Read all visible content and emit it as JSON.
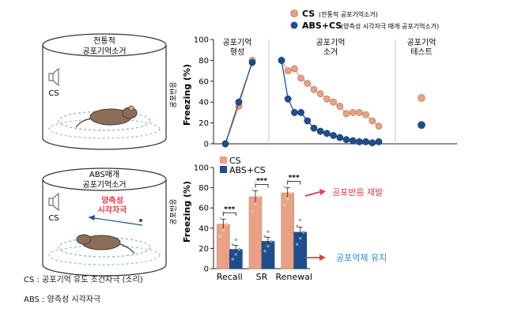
{
  "legend": {
    "items": [
      {
        "label": "CS",
        "sub": "(전통적 공포기억소거)",
        "color": "#e8a184"
      },
      {
        "label": "ABS+CS",
        "sub": "(양측성 시각자극 매개 공포기억소거)",
        "color": "#1f4e8c"
      }
    ]
  },
  "scene_top": {
    "title_line1": "전통적",
    "title_line2": "공포기억소거",
    "cs_label": "CS"
  },
  "scene_bottom": {
    "title_line1": "ABS매개",
    "title_line2": "공포기억소거",
    "stim_line1": "양측성",
    "stim_line2": "시각자극",
    "cs_label": "CS"
  },
  "footnotes": {
    "cs": "CS : 공포기억 유도 조건자극 (소리)",
    "abs": "ABS : 양측성 시각자극"
  },
  "annotations": {
    "fear_return": "공포반응 재발",
    "fear_maintain": "공포억제 유지",
    "colors": {
      "red": "#e63946",
      "blue": "#2e86c1"
    }
  },
  "chart_data": [
    {
      "type": "line",
      "ylabel": "Freezing (%)",
      "ylabel_ko": "공포반응",
      "ylim": [
        0,
        100
      ],
      "yticks": [
        0,
        20,
        40,
        60,
        80,
        100
      ],
      "phases": [
        {
          "line1": "공포기억",
          "line2": "형성"
        },
        {
          "line1": "공포기억",
          "line2": "소거"
        },
        {
          "line1": "공포기억",
          "line2": "테스트"
        }
      ],
      "series": [
        {
          "name": "CS",
          "color": "#e8a184",
          "acquisition": [
            0,
            36,
            80
          ],
          "extinction": [
            80,
            70,
            72,
            63,
            58,
            52,
            48,
            43,
            40,
            36,
            29,
            30,
            30,
            28,
            22,
            17
          ],
          "test": [
            44
          ]
        },
        {
          "name": "ABS+CS",
          "color": "#1f4e8c",
          "acquisition": [
            0,
            40,
            78
          ],
          "extinction": [
            80,
            43,
            30,
            30,
            22,
            15,
            12,
            10,
            8,
            6,
            4,
            3,
            2,
            2,
            1,
            2
          ],
          "test": [
            18
          ]
        }
      ]
    },
    {
      "type": "bar",
      "ylabel": "Freezing (%)",
      "ylabel_ko": "공포반응",
      "ylim": [
        0,
        100
      ],
      "yticks": [
        0,
        20,
        40,
        60,
        80,
        100
      ],
      "categories": [
        "Recall",
        "SR",
        "Renewal"
      ],
      "series": [
        {
          "name": "CS",
          "color": "#e8a184",
          "values": [
            44,
            71,
            75
          ],
          "errors": [
            5,
            6,
            5
          ]
        },
        {
          "name": "ABS+CS",
          "color": "#1f4e8c",
          "values": [
            19,
            27,
            36
          ],
          "errors": [
            4,
            4,
            5
          ]
        }
      ],
      "significance": [
        "***",
        "***",
        "***"
      ]
    }
  ]
}
